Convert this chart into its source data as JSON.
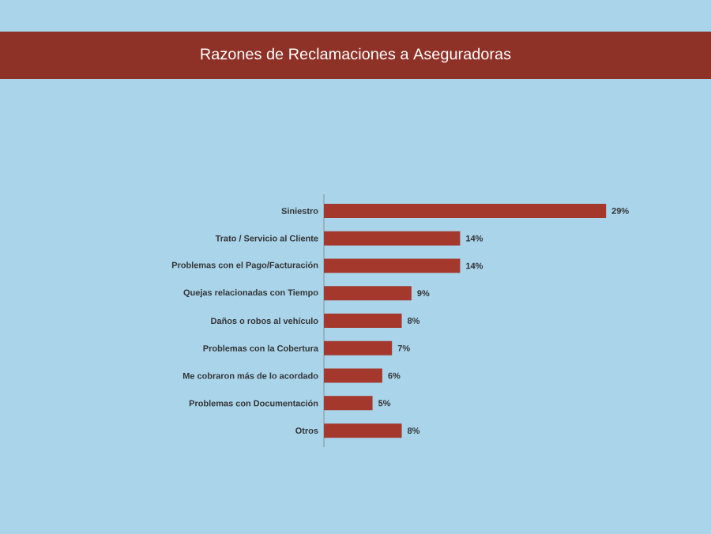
{
  "chart_data": {
    "type": "bar",
    "orientation": "horizontal",
    "title": "Razones de Reclamaciones a Aseguradoras",
    "categories": [
      "Siniestro",
      "Trato / Servicio al Cliente",
      "Problemas con el Pago/Facturación",
      "Quejas relacionadas con Tiempo",
      "Daños o robos al vehículo",
      "Problemas con la Cobertura",
      "Me cobraron más de lo acordado",
      "Problemas con Documentación",
      "Otros"
    ],
    "values": [
      29,
      14,
      14,
      9,
      8,
      7,
      6,
      5,
      8
    ],
    "value_labels": [
      "29%",
      "14%",
      "14%",
      "9%",
      "8%",
      "7%",
      "6%",
      "5%",
      "8%"
    ],
    "color": "#a5382d"
  }
}
